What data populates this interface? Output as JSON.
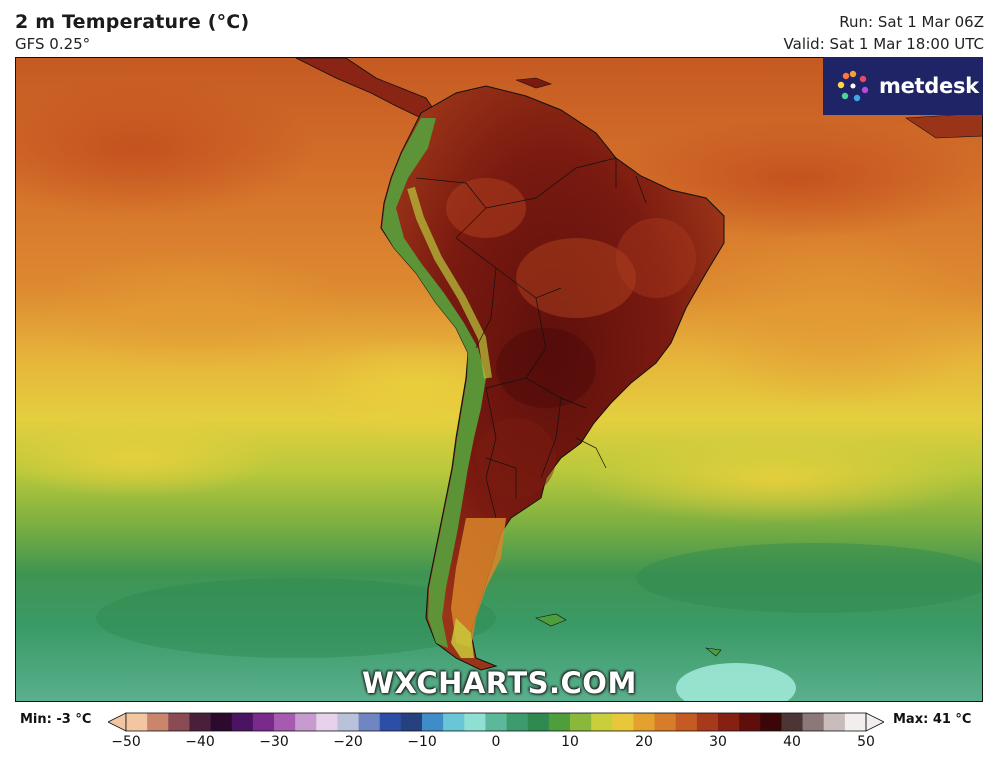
{
  "header": {
    "title": "2 m Temperature (°C)",
    "model": "GFS 0.25°",
    "run": "Run: Sat 1 Mar 06Z",
    "valid": "Valid: Sat 1 Mar 18:00 UTC"
  },
  "branding": {
    "logo_text": "metdesk",
    "logo_bg": "#1f2466",
    "watermark": "WXCHARTS.COM"
  },
  "map": {
    "region": "South America",
    "variable": "2 m temperature"
  },
  "legend": {
    "min_label": "Min: -3 °C",
    "max_label": "Max: 41 °C",
    "ticks": [
      "−50",
      "−40",
      "−30",
      "−20",
      "−10",
      "0",
      "10",
      "20",
      "30",
      "40",
      "50"
    ],
    "range": [
      -50,
      50
    ],
    "colors": [
      "#f3c6a2",
      "#c9866d",
      "#8a4b55",
      "#4a1f3a",
      "#2b0a2e",
      "#4a1460",
      "#7a2a8a",
      "#a65bb0",
      "#c79ad0",
      "#e6d2ea",
      "#b9c2da",
      "#6f86c2",
      "#2d4ea6",
      "#27407f",
      "#3f8cc8",
      "#69c6d8",
      "#8fe0d2",
      "#5bb89a",
      "#3c9c6e",
      "#2f8a50",
      "#4f9e3c",
      "#8ab83a",
      "#c8cf3a",
      "#e8c83a",
      "#e3a12e",
      "#d77c2a",
      "#c55a22",
      "#a83a1c",
      "#862012",
      "#5e0f0c",
      "#3b0607",
      "#4e3535",
      "#8c7878",
      "#c9bcbc",
      "#f2eeee"
    ]
  }
}
